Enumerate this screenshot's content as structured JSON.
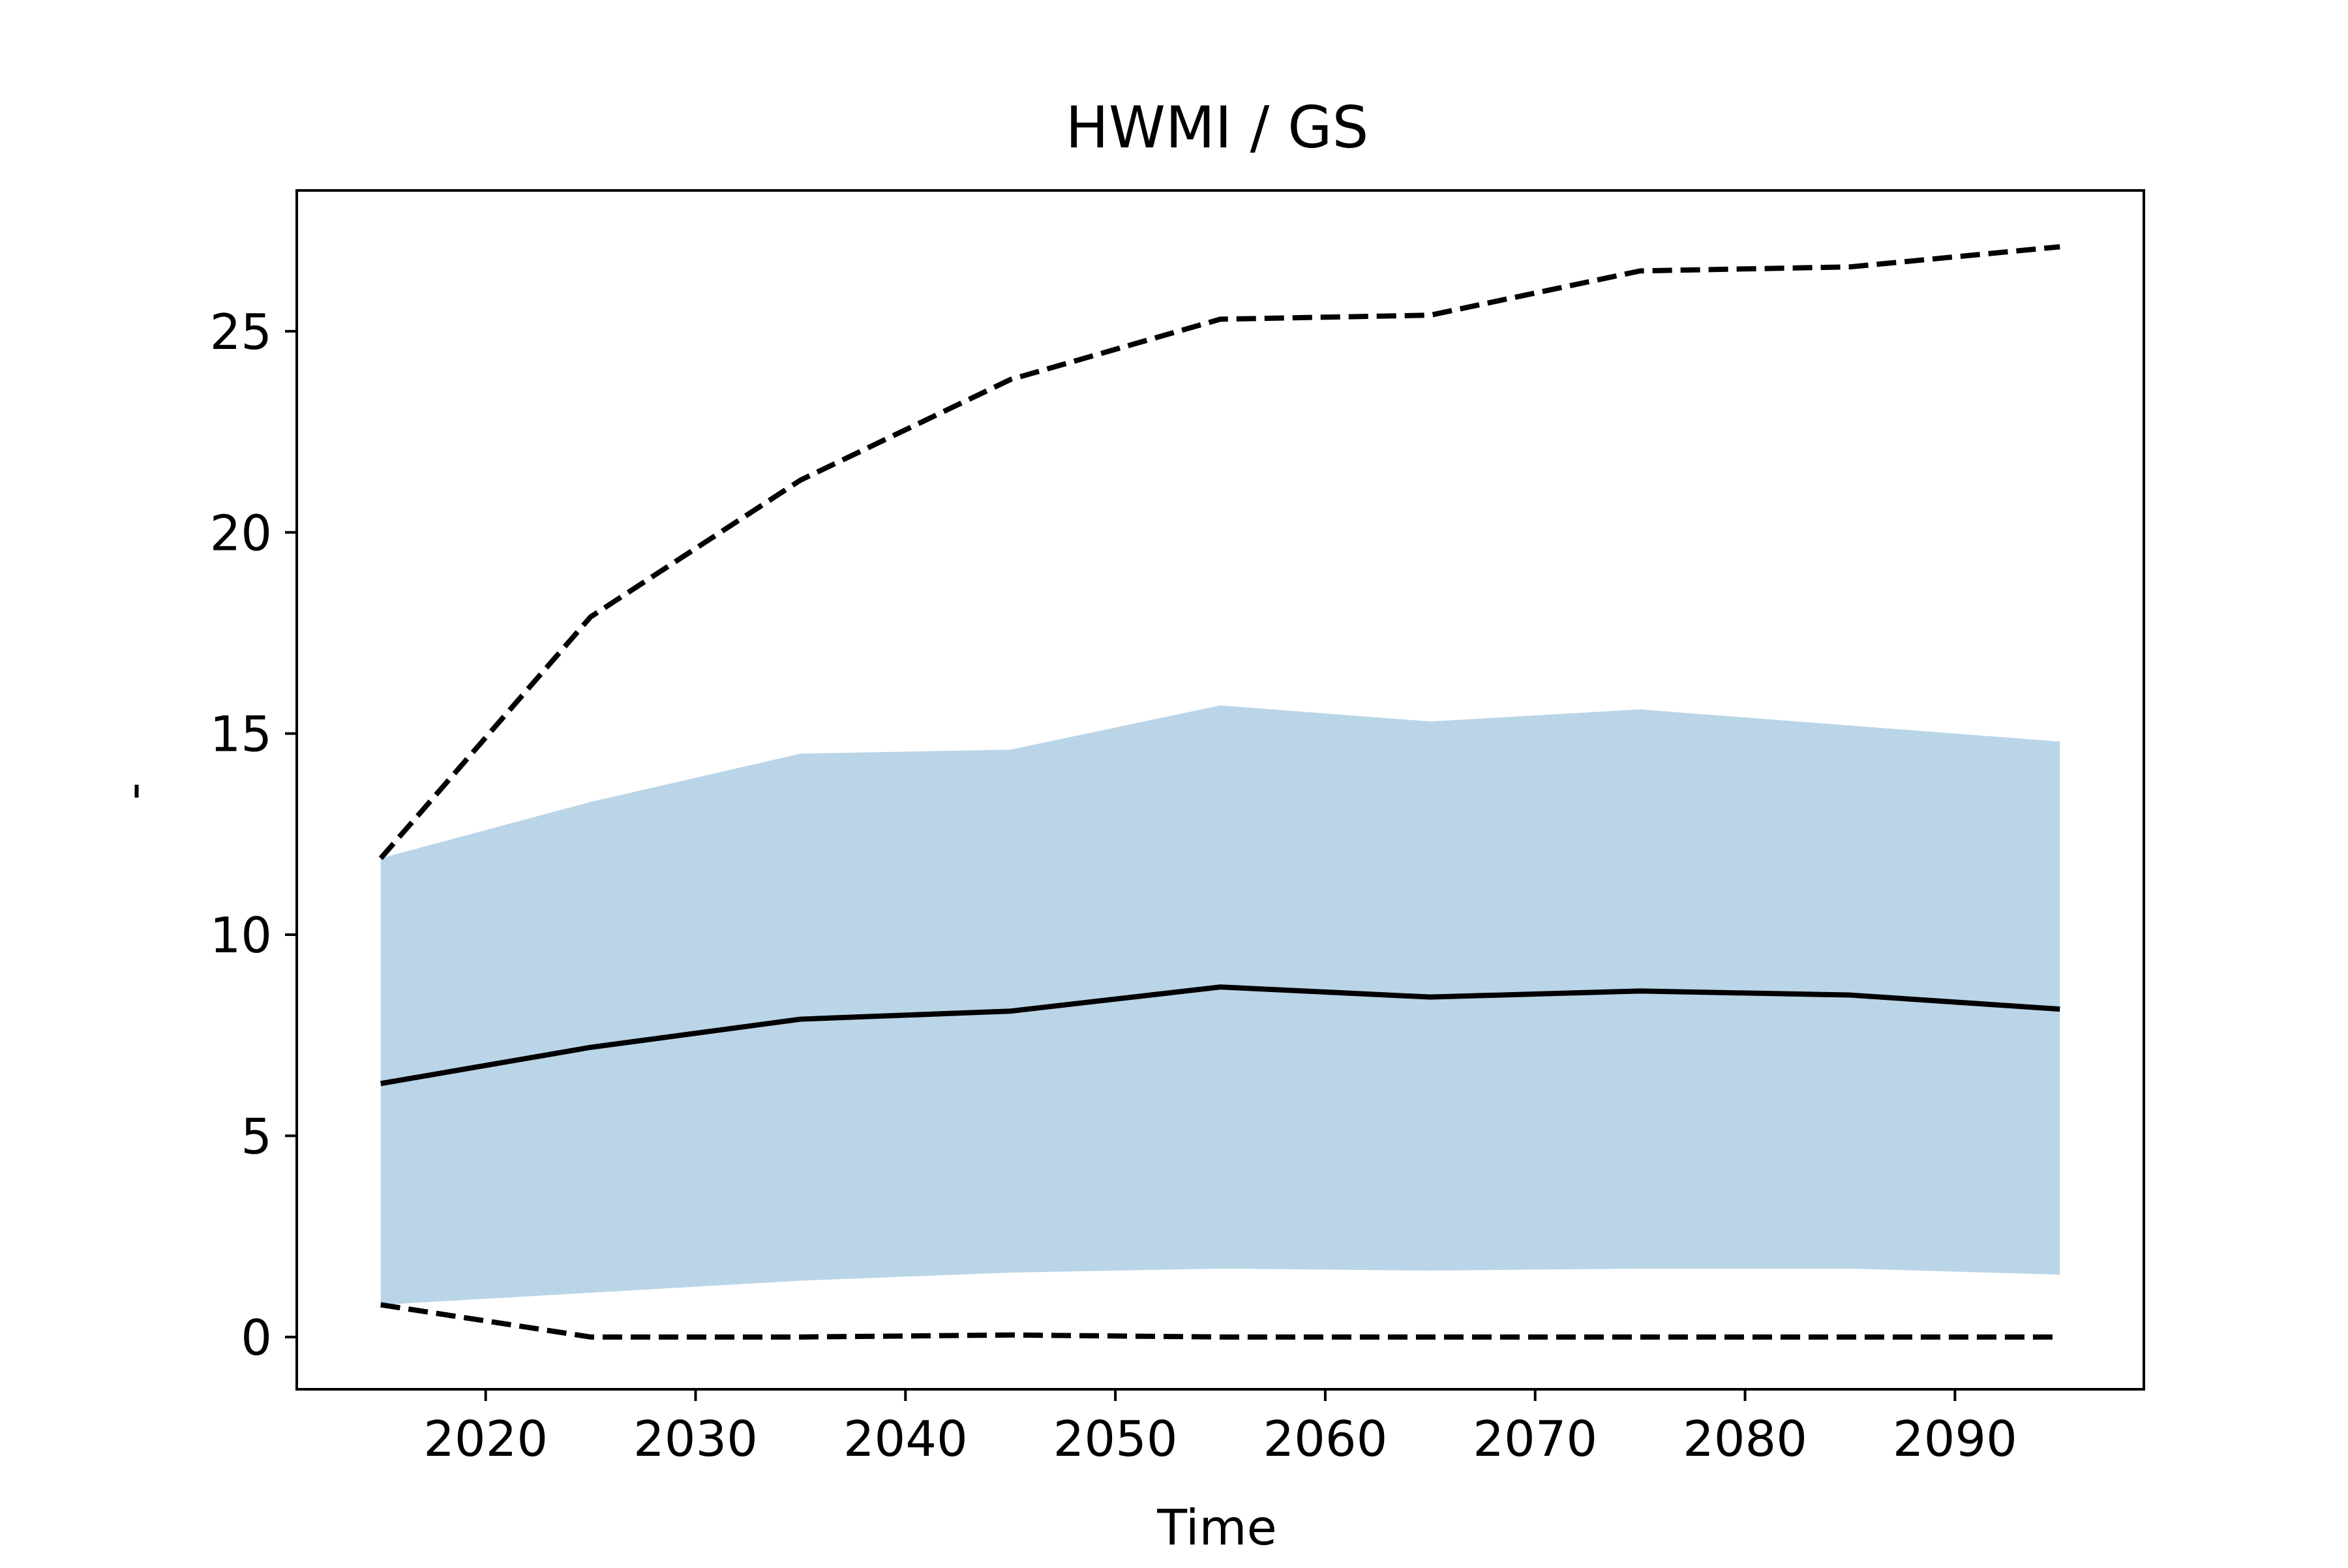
{
  "chart_data": {
    "type": "line",
    "title": "HWMI / GS",
    "xlabel": "Time",
    "ylabel": "-",
    "xlim": [
      2011,
      2099
    ],
    "ylim": [
      -1.3,
      28.5
    ],
    "x_ticks": [
      2020,
      2030,
      2040,
      2050,
      2060,
      2070,
      2080,
      2090
    ],
    "y_ticks": [
      0,
      5,
      10,
      15,
      20,
      25
    ],
    "x": [
      2015,
      2025,
      2035,
      2045,
      2055,
      2065,
      2075,
      2085,
      2095
    ],
    "median": [
      6.3,
      7.2,
      7.9,
      8.1,
      8.7,
      8.45,
      8.6,
      8.5,
      8.15
    ],
    "band_upper": [
      11.9,
      13.3,
      14.5,
      14.6,
      15.7,
      15.3,
      15.6,
      15.2,
      14.8
    ],
    "band_lower": [
      0.8,
      1.1,
      1.4,
      1.6,
      1.7,
      1.65,
      1.7,
      1.7,
      1.55
    ],
    "max": [
      11.9,
      17.9,
      21.3,
      23.8,
      25.3,
      25.4,
      26.5,
      26.6,
      27.1
    ],
    "min": [
      0.8,
      0.0,
      0.0,
      0.05,
      0.0,
      0.0,
      0.0,
      0.0,
      0.0
    ],
    "grid": false,
    "colors": {
      "band": "#bad5e7",
      "line": "#000000",
      "axes": "#000000"
    }
  }
}
